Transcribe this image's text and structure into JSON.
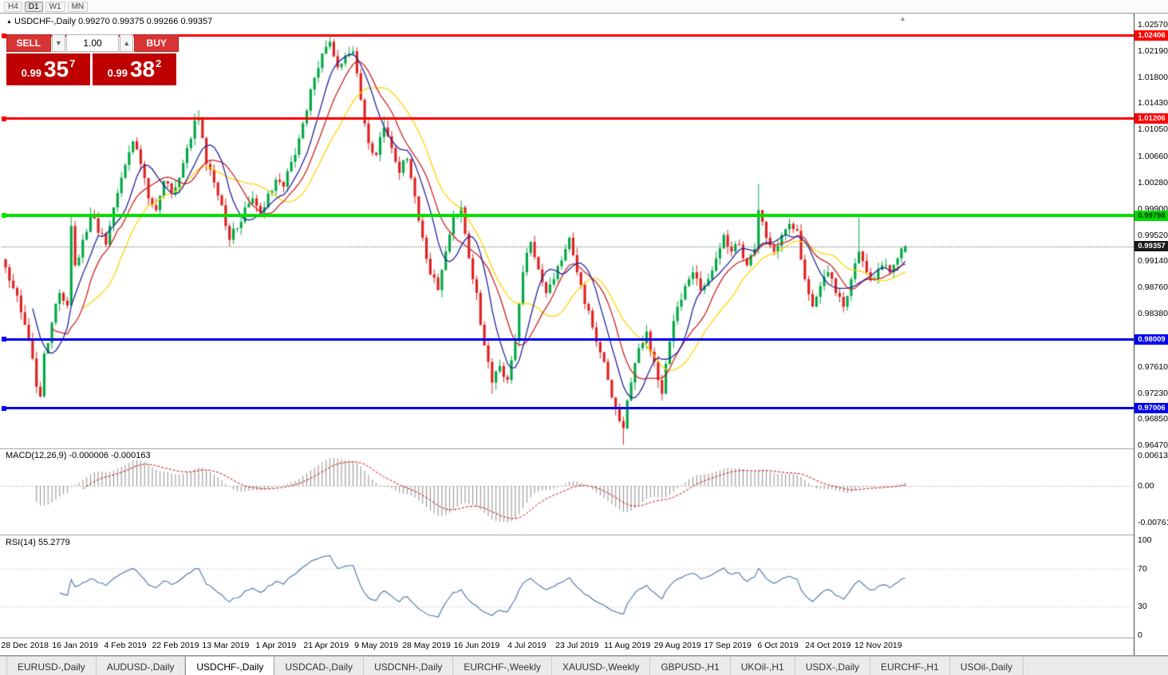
{
  "toolbar": {
    "timeframes": [
      "H4",
      "D1",
      "W1",
      "MN"
    ],
    "active": "D1"
  },
  "title": {
    "symbol_line": "USDCHF-,Daily 0.99270 0.99375 0.99266 0.99357"
  },
  "trade": {
    "sell_label": "SELL",
    "buy_label": "BUY",
    "volume": "1.00",
    "sell_price": {
      "prefix": "0.99",
      "main": "35",
      "sup": "7"
    },
    "buy_price": {
      "prefix": "0.99",
      "main": "38",
      "sup": "2"
    }
  },
  "price_axis": {
    "grid_labels": [
      "1.02570",
      "1.02190",
      "1.01800",
      "1.01430",
      "1.01050",
      "1.00660",
      "1.00280",
      "0.99900",
      "0.99520",
      "0.99140",
      "0.98760",
      "0.98380",
      "0.97610",
      "0.97230",
      "0.96850",
      "0.96470"
    ],
    "tags": [
      {
        "text": "1.02406",
        "price": 1.02406,
        "bg": "#ff0000",
        "fg": "#ffffff"
      },
      {
        "text": "1.01206",
        "price": 1.01206,
        "bg": "#ff0000",
        "fg": "#ffffff"
      },
      {
        "text": "0.99798",
        "price": 0.99798,
        "bg": "#00d800",
        "fg": "#003300"
      },
      {
        "text": "0.99357",
        "price": 0.99357,
        "bg": "#1a1a1a",
        "fg": "#ffffff"
      },
      {
        "text": "0.98009",
        "price": 0.98009,
        "bg": "#0000ee",
        "fg": "#ffffff"
      },
      {
        "text": "0.97006",
        "price": 0.97006,
        "bg": "#0000ee",
        "fg": "#ffffff"
      }
    ]
  },
  "panels": {
    "macd": {
      "label": "MACD(12,26,9) -0.000006 -0.000163",
      "axis": [
        "0.00613",
        "0.00",
        "-0.00761"
      ]
    },
    "rsi": {
      "label": "RSI(14) 55.2779",
      "axis": [
        "100",
        "70",
        "30",
        "0"
      ]
    }
  },
  "date_axis": [
    {
      "text": "28 Dec 2018",
      "index": 5
    },
    {
      "text": "16 Jan 2019",
      "index": 18
    },
    {
      "text": "4 Feb 2019",
      "index": 31
    },
    {
      "text": "22 Feb 2019",
      "index": 44
    },
    {
      "text": "13 Mar 2019",
      "index": 57
    },
    {
      "text": "1 Apr 2019",
      "index": 70
    },
    {
      "text": "21 Apr 2019",
      "index": 83
    },
    {
      "text": "9 May 2019",
      "index": 96
    },
    {
      "text": "28 May 2019",
      "index": 109
    },
    {
      "text": "16 Jun 2019",
      "index": 122
    },
    {
      "text": "4 Jul 2019",
      "index": 135
    },
    {
      "text": "23 Jul 2019",
      "index": 148
    },
    {
      "text": "11 Aug 2019",
      "index": 161
    },
    {
      "text": "29 Aug 2019",
      "index": 174
    },
    {
      "text": "17 Sep 2019",
      "index": 187
    },
    {
      "text": "6 Oct 2019",
      "index": 200
    },
    {
      "text": "24 Oct 2019",
      "index": 213
    },
    {
      "text": "12 Nov 2019",
      "index": 226
    }
  ],
  "tabs": [
    {
      "label": "EURUSD-,Daily",
      "active": false
    },
    {
      "label": "AUDUSD-,Daily",
      "active": false
    },
    {
      "label": "USDCHF-,Daily",
      "active": true
    },
    {
      "label": "USDCAD-,Daily",
      "active": false
    },
    {
      "label": "USDCNH-,Daily",
      "active": false
    },
    {
      "label": "EURCHF-,Weekly",
      "active": false
    },
    {
      "label": "XAUUSD-,Weekly",
      "active": false
    },
    {
      "label": "GBPUSD-,H1",
      "active": false
    },
    {
      "label": "UKOil-,H1",
      "active": false
    },
    {
      "label": "USDX-,Daily",
      "active": false
    },
    {
      "label": "EURCHF-,H1",
      "active": false
    },
    {
      "label": "USOil-,Daily",
      "active": false
    }
  ],
  "chart_data": {
    "type": "candlestick",
    "symbol": "USDCHF-",
    "timeframe": "Daily",
    "title": "USDCHF-,Daily",
    "last_ohlc": {
      "open": 0.9927,
      "high": 0.99375,
      "low": 0.99266,
      "close": 0.99357
    },
    "num_candles": 234,
    "price_range": [
      0.9647,
      1.0257
    ],
    "close_anchors": [
      [
        0,
        0.9905
      ],
      [
        2,
        0.9875
      ],
      [
        4,
        0.984
      ],
      [
        6,
        0.98
      ],
      [
        8,
        0.9732
      ],
      [
        9,
        0.9718
      ],
      [
        10,
        0.978
      ],
      [
        12,
        0.9825
      ],
      [
        14,
        0.9868
      ],
      [
        16,
        0.985
      ],
      [
        17,
        0.9965
      ],
      [
        18,
        0.9908
      ],
      [
        20,
        0.9945
      ],
      [
        22,
        0.9982
      ],
      [
        24,
        0.9955
      ],
      [
        26,
        0.9938
      ],
      [
        28,
        0.9992
      ],
      [
        30,
        1.0035
      ],
      [
        33,
        1.0088
      ],
      [
        35,
        1.0055
      ],
      [
        37,
        1.0005
      ],
      [
        39,
        0.9988
      ],
      [
        41,
        1.003
      ],
      [
        43,
        1.0012
      ],
      [
        45,
        1.0035
      ],
      [
        47,
        1.0078
      ],
      [
        49,
        1.0118
      ],
      [
        50,
        1.0122
      ],
      [
        52,
        1.0055
      ],
      [
        54,
        1.0028
      ],
      [
        56,
        0.9995
      ],
      [
        58,
        0.9945
      ],
      [
        60,
        0.9962
      ],
      [
        62,
        0.9992
      ],
      [
        64,
        1.0005
      ],
      [
        66,
        0.9985
      ],
      [
        68,
        1.0012
      ],
      [
        70,
        1.0032
      ],
      [
        72,
        1.0022
      ],
      [
        74,
        1.0058
      ],
      [
        76,
        1.0092
      ],
      [
        78,
        1.0132
      ],
      [
        80,
        1.018
      ],
      [
        82,
        1.0215
      ],
      [
        84,
        1.0232
      ],
      [
        86,
        1.0195
      ],
      [
        88,
        1.0212
      ],
      [
        90,
        1.0218
      ],
      [
        92,
        1.0148
      ],
      [
        94,
        1.0085
      ],
      [
        96,
        1.0068
      ],
      [
        98,
        1.0108
      ],
      [
        100,
        1.0078
      ],
      [
        102,
        1.0042
      ],
      [
        104,
        1.0062
      ],
      [
        106,
        1.0008
      ],
      [
        108,
        0.9948
      ],
      [
        110,
        0.9895
      ],
      [
        112,
        0.9872
      ],
      [
        114,
        0.9928
      ],
      [
        116,
        0.9978
      ],
      [
        118,
        0.9992
      ],
      [
        120,
        0.9918
      ],
      [
        122,
        0.9868
      ],
      [
        124,
        0.9792
      ],
      [
        126,
        0.9738
      ],
      [
        128,
        0.9762
      ],
      [
        130,
        0.9742
      ],
      [
        132,
        0.9798
      ],
      [
        134,
        0.9898
      ],
      [
        136,
        0.9942
      ],
      [
        138,
        0.9902
      ],
      [
        140,
        0.9868
      ],
      [
        142,
        0.9888
      ],
      [
        144,
        0.9915
      ],
      [
        146,
        0.9948
      ],
      [
        148,
        0.9898
      ],
      [
        150,
        0.9852
      ],
      [
        152,
        0.9818
      ],
      [
        154,
        0.9782
      ],
      [
        156,
        0.9742
      ],
      [
        158,
        0.97
      ],
      [
        160,
        0.9672
      ],
      [
        162,
        0.9738
      ],
      [
        164,
        0.9788
      ],
      [
        166,
        0.9812
      ],
      [
        168,
        0.9768
      ],
      [
        170,
        0.9722
      ],
      [
        172,
        0.9798
      ],
      [
        174,
        0.9848
      ],
      [
        176,
        0.9878
      ],
      [
        178,
        0.9898
      ],
      [
        180,
        0.9872
      ],
      [
        182,
        0.9888
      ],
      [
        184,
        0.9918
      ],
      [
        186,
        0.9952
      ],
      [
        188,
        0.9928
      ],
      [
        190,
        0.9938
      ],
      [
        192,
        0.9908
      ],
      [
        194,
        0.9932
      ],
      [
        195,
        0.9988
      ],
      [
        197,
        0.9948
      ],
      [
        199,
        0.9928
      ],
      [
        201,
        0.9952
      ],
      [
        203,
        0.9968
      ],
      [
        205,
        0.9958
      ],
      [
        207,
        0.9888
      ],
      [
        209,
        0.9848
      ],
      [
        211,
        0.9878
      ],
      [
        213,
        0.9898
      ],
      [
        215,
        0.9868
      ],
      [
        217,
        0.9848
      ],
      [
        219,
        0.9888
      ],
      [
        221,
        0.9928
      ],
      [
        223,
        0.9898
      ],
      [
        225,
        0.9888
      ],
      [
        227,
        0.9908
      ],
      [
        229,
        0.9898
      ],
      [
        231,
        0.9918
      ],
      [
        233,
        0.99357
      ]
    ],
    "high_overrides": [
      [
        84,
        1.0242
      ],
      [
        49,
        1.0128
      ],
      [
        98,
        1.0125
      ],
      [
        17,
        0.998
      ],
      [
        118,
        1.0002
      ],
      [
        195,
        1.0026
      ],
      [
        221,
        0.9978
      ]
    ],
    "low_overrides": [
      [
        9,
        0.9716
      ],
      [
        126,
        0.9722
      ],
      [
        160,
        0.9648
      ],
      [
        170,
        0.9712
      ]
    ],
    "horizontal_lines": [
      {
        "price": 1.02406,
        "color": "#ff0000",
        "width": 3
      },
      {
        "price": 1.01206,
        "color": "#ff0000",
        "width": 3
      },
      {
        "price": 0.99798,
        "color": "#00e000",
        "width": 4
      },
      {
        "price": 0.98009,
        "color": "#0000f0",
        "width": 3
      },
      {
        "price": 0.97006,
        "color": "#0000f0",
        "width": 3
      }
    ],
    "current_price": 0.99357,
    "moving_averages": [
      {
        "period": 21,
        "color": "#ffd400"
      },
      {
        "period": 13,
        "color": "#cf1d1d"
      },
      {
        "period": 8,
        "color": "#20209f"
      }
    ],
    "indicators": {
      "macd": {
        "fast": 12,
        "slow": 26,
        "signal": 9,
        "current_values": [
          -6e-06,
          -0.000163
        ]
      },
      "rsi": {
        "period": 14,
        "current": 55.2779,
        "levels": [
          70,
          30
        ]
      }
    }
  }
}
